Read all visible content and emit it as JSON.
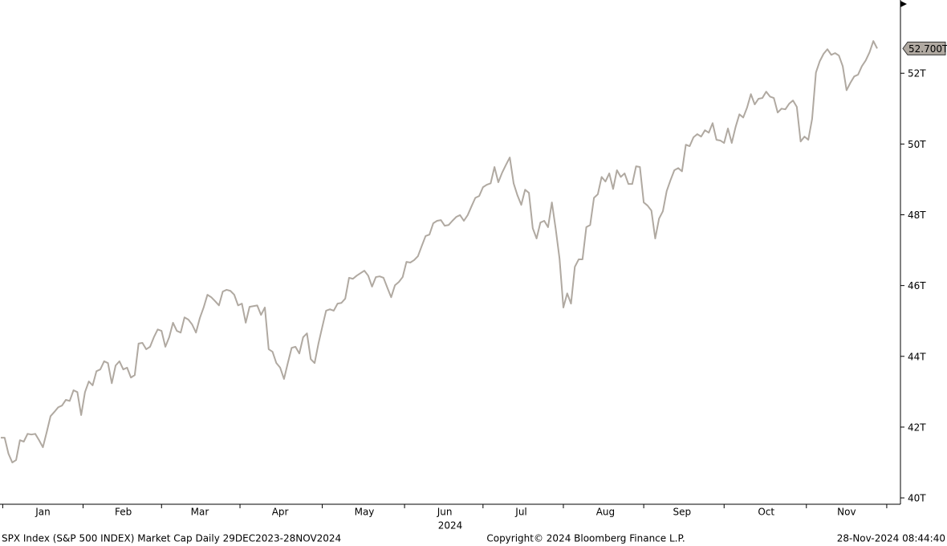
{
  "chart_data": {
    "type": "line",
    "footer_left": "SPX Index (S&P 500 INDEX) Market Cap  Daily 29DEC2023-28NOV2024",
    "footer_center": "Copyright© 2024 Bloomberg Finance L.P.",
    "footer_right": "28-Nov-2024 08:44:40",
    "year_label": "2024",
    "color": "#b0a9a1",
    "ylim": [
      39.82,
      54.07
    ],
    "yticks": [
      {
        "value": 40,
        "label": "40T"
      },
      {
        "value": 42,
        "label": "42T"
      },
      {
        "value": 44,
        "label": "44T"
      },
      {
        "value": 46,
        "label": "46T"
      },
      {
        "value": 48,
        "label": "48T"
      },
      {
        "value": 50,
        "label": "50T"
      },
      {
        "value": 52,
        "label": "52T"
      }
    ],
    "categories": [
      null,
      null,
      null,
      null,
      null,
      null,
      null,
      null,
      null,
      null,
      null,
      "Jan",
      null,
      null,
      null,
      null,
      null,
      null,
      null,
      null,
      null,
      null,
      null,
      null,
      null,
      null,
      null,
      null,
      null,
      null,
      null,
      null,
      "Feb",
      null,
      null,
      null,
      null,
      null,
      null,
      null,
      null,
      null,
      null,
      null,
      null,
      null,
      null,
      null,
      null,
      null,
      null,
      null,
      "Mar",
      null,
      null,
      null,
      null,
      null,
      null,
      null,
      null,
      null,
      null,
      null,
      null,
      null,
      null,
      null,
      null,
      null,
      null,
      null,
      null,
      "Apr",
      null,
      null,
      null,
      null,
      null,
      null,
      null,
      null,
      null,
      null,
      null,
      null,
      null,
      null,
      null,
      null,
      null,
      null,
      null,
      null,
      null,
      "May",
      null,
      null,
      null,
      null,
      null,
      null,
      null,
      null,
      null,
      null,
      null,
      null,
      null,
      null,
      null,
      null,
      null,
      null,
      null,
      null,
      "Jun",
      null,
      null,
      null,
      null,
      null,
      null,
      null,
      null,
      null,
      null,
      null,
      null,
      null,
      null,
      null,
      null,
      null,
      null,
      null,
      "Jul",
      null,
      null,
      null,
      null,
      null,
      null,
      null,
      null,
      null,
      null,
      null,
      null,
      null,
      null,
      null,
      null,
      null,
      null,
      null,
      null,
      null,
      "Aug",
      null,
      null,
      null,
      null,
      null,
      null,
      null,
      null,
      null,
      null,
      null,
      null,
      null,
      null,
      null,
      null,
      null,
      null,
      null,
      "Sep",
      null,
      null,
      null,
      null,
      null,
      null,
      null,
      null,
      null,
      null,
      null,
      null,
      null,
      null,
      null,
      null,
      null,
      null,
      null,
      null,
      null,
      "Oct",
      null,
      null,
      null,
      null,
      null,
      null,
      null,
      null,
      null,
      null,
      null,
      null,
      null,
      null,
      null,
      null,
      null,
      null,
      null,
      null,
      "Nov",
      null,
      null,
      null,
      null,
      null,
      null,
      null,
      null
    ],
    "values": [
      41.7,
      41.7,
      41.25,
      41.0,
      41.07,
      41.63,
      41.59,
      41.81,
      41.79,
      41.81,
      41.63,
      41.43,
      41.86,
      42.31,
      42.43,
      42.56,
      42.61,
      42.77,
      42.74,
      43.04,
      42.99,
      42.34,
      42.99,
      43.29,
      43.18,
      43.58,
      43.63,
      43.86,
      43.81,
      43.24,
      43.74,
      43.86,
      43.63,
      43.68,
      43.4,
      43.47,
      44.36,
      44.38,
      44.2,
      44.27,
      44.54,
      44.76,
      44.72,
      44.27,
      44.54,
      44.95,
      44.72,
      44.67,
      45.1,
      45.04,
      44.9,
      44.67,
      45.08,
      45.38,
      45.74,
      45.67,
      45.56,
      45.44,
      45.83,
      45.88,
      45.85,
      45.74,
      45.44,
      45.49,
      44.95,
      45.4,
      45.42,
      45.44,
      45.17,
      45.38,
      44.2,
      44.13,
      43.81,
      43.68,
      43.36,
      43.81,
      44.24,
      44.27,
      44.08,
      44.54,
      44.65,
      43.92,
      43.81,
      44.36,
      44.83,
      45.29,
      45.33,
      45.29,
      45.49,
      45.51,
      45.63,
      46.22,
      46.19,
      46.28,
      46.35,
      46.42,
      46.28,
      45.97,
      46.24,
      46.26,
      46.22,
      45.94,
      45.67,
      46.01,
      46.1,
      46.24,
      46.67,
      46.65,
      46.72,
      46.83,
      47.12,
      47.4,
      47.44,
      47.76,
      47.83,
      47.85,
      47.69,
      47.71,
      47.83,
      47.94,
      47.99,
      47.83,
      47.99,
      48.24,
      48.48,
      48.53,
      48.78,
      48.85,
      48.89,
      49.35,
      48.92,
      49.19,
      49.41,
      49.62,
      48.89,
      48.55,
      48.28,
      48.71,
      48.62,
      47.62,
      47.33,
      47.78,
      47.83,
      47.65,
      48.35,
      47.6,
      46.76,
      45.38,
      45.78,
      45.49,
      46.53,
      46.74,
      46.74,
      47.65,
      47.71,
      48.48,
      48.58,
      49.07,
      48.94,
      49.17,
      48.73,
      49.26,
      49.07,
      49.17,
      48.87,
      48.87,
      49.37,
      49.35,
      48.35,
      48.26,
      48.12,
      47.33,
      47.89,
      48.1,
      48.67,
      48.98,
      49.26,
      49.32,
      49.23,
      49.98,
      49.94,
      50.19,
      50.28,
      50.21,
      50.39,
      50.32,
      50.59,
      50.12,
      50.1,
      50.03,
      50.44,
      50.03,
      50.48,
      50.84,
      50.75,
      51.03,
      51.41,
      51.12,
      51.28,
      51.3,
      51.48,
      51.34,
      51.3,
      50.89,
      51.0,
      50.98,
      51.14,
      51.23,
      51.05,
      50.07,
      50.21,
      50.12,
      50.71,
      52.02,
      52.34,
      52.55,
      52.68,
      52.52,
      52.57,
      52.5,
      52.2,
      51.52,
      51.73,
      51.91,
      51.96,
      52.2,
      52.36,
      52.59,
      52.91,
      52.7
    ],
    "value_labels": [
      null,
      null,
      null,
      null,
      null,
      null,
      null,
      null,
      null,
      null,
      null,
      null,
      null,
      null,
      null,
      null,
      null,
      null,
      null,
      null,
      null,
      null,
      null,
      null,
      null,
      null,
      null,
      null,
      null,
      null,
      null,
      null,
      null,
      null,
      null,
      null,
      null,
      null,
      null,
      null,
      null,
      null,
      null,
      null,
      null,
      null,
      null,
      null,
      null,
      null,
      null,
      null,
      null,
      null,
      null,
      null,
      null,
      null,
      null,
      null,
      null,
      null,
      null,
      null,
      null,
      null,
      null,
      null,
      null,
      null,
      null,
      null,
      null,
      null,
      null,
      null,
      null,
      null,
      null,
      null,
      null,
      null,
      null,
      null,
      null,
      null,
      null,
      null,
      null,
      null,
      null,
      null,
      null,
      null,
      null,
      null,
      null,
      null,
      null,
      null,
      null,
      null,
      null,
      null,
      null,
      null,
      null,
      null,
      null,
      null,
      null,
      null,
      null,
      null,
      null,
      null,
      null,
      null,
      null,
      null,
      null,
      null,
      null,
      null,
      null,
      null,
      null,
      null,
      null,
      null,
      null,
      null,
      null,
      null,
      null,
      null,
      null,
      null,
      null,
      null,
      null,
      null,
      null,
      null,
      null,
      null,
      null,
      null,
      null,
      null,
      null,
      null,
      null,
      null,
      null,
      null,
      null,
      null,
      null,
      null,
      null,
      null,
      null,
      null,
      null,
      null,
      null,
      null,
      null,
      null,
      null,
      null,
      null,
      null,
      null,
      null,
      null,
      null,
      null,
      null,
      null,
      null,
      null,
      null,
      null,
      null,
      null,
      null,
      null,
      null,
      null,
      null,
      null,
      null,
      null,
      null,
      null,
      null,
      null,
      null,
      null,
      null,
      null,
      null,
      null,
      null,
      null,
      null,
      null,
      null,
      null,
      null,
      null,
      null,
      null,
      null,
      null,
      null,
      null,
      null,
      null,
      null,
      null,
      null,
      null,
      null,
      null,
      null,
      null,
      "52.700T"
    ]
  }
}
